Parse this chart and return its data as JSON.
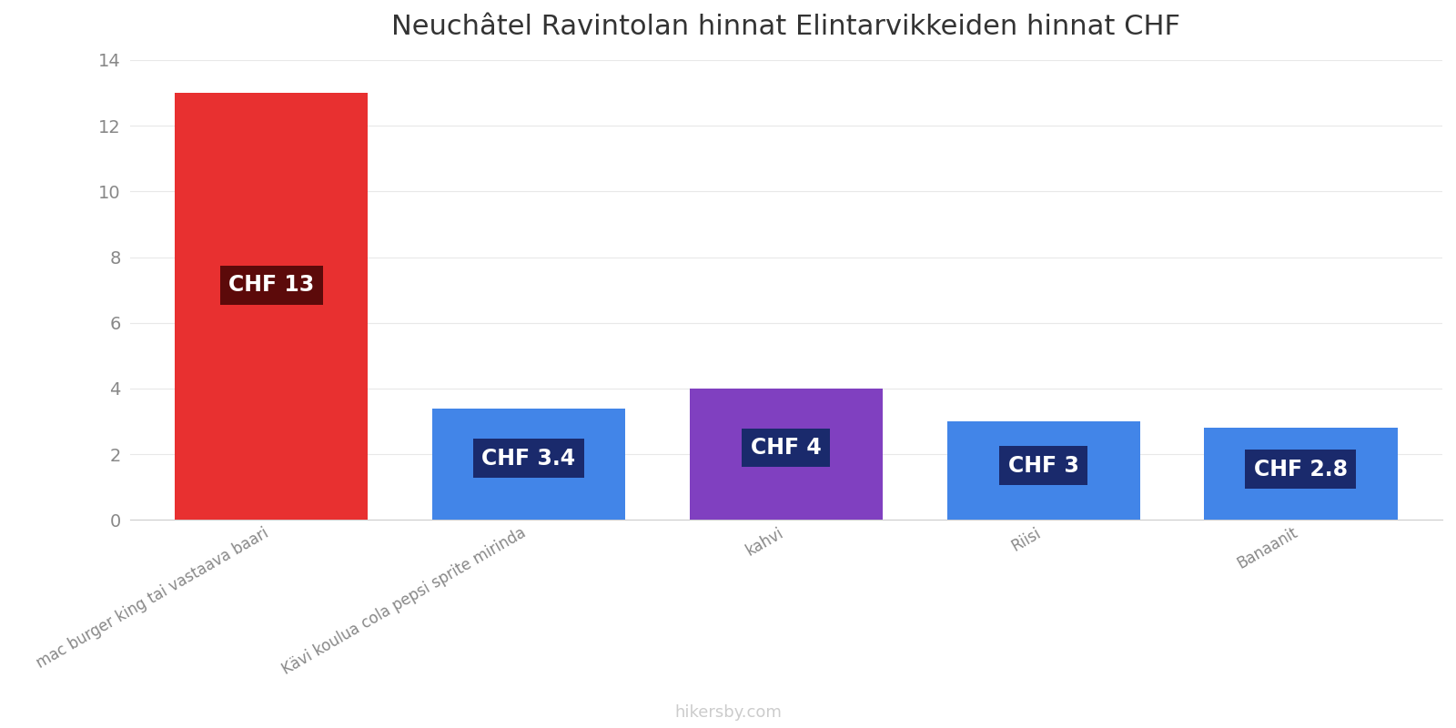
{
  "title": "Neuchâtel Ravintolan hinnat Elintarvikkeiden hinnat CHF",
  "categories": [
    "mac burger king tai vastaava baari",
    "Kävi koulua cola pepsi sprite mirinda",
    "kahvi",
    "Riisi",
    "Banaanit"
  ],
  "values": [
    13,
    3.4,
    4,
    3,
    2.8
  ],
  "bar_colors": [
    "#e83030",
    "#4285e8",
    "#8040c0",
    "#4285e8",
    "#4285e8"
  ],
  "label_bg_colors": [
    "#5c0a0a",
    "#1a2a6c",
    "#1a2a6c",
    "#1a2a6c",
    "#1a2a6c"
  ],
  "labels": [
    "CHF 13",
    "CHF 3.4",
    "CHF 4",
    "CHF 3",
    "CHF 2.8"
  ],
  "ylim": [
    0,
    14
  ],
  "yticks": [
    0,
    2,
    4,
    6,
    8,
    10,
    12,
    14
  ],
  "background_color": "#ffffff",
  "title_fontsize": 22,
  "label_fontsize": 17,
  "tick_fontsize": 14,
  "watermark": "hikersby.com",
  "watermark_color": "#cccccc"
}
